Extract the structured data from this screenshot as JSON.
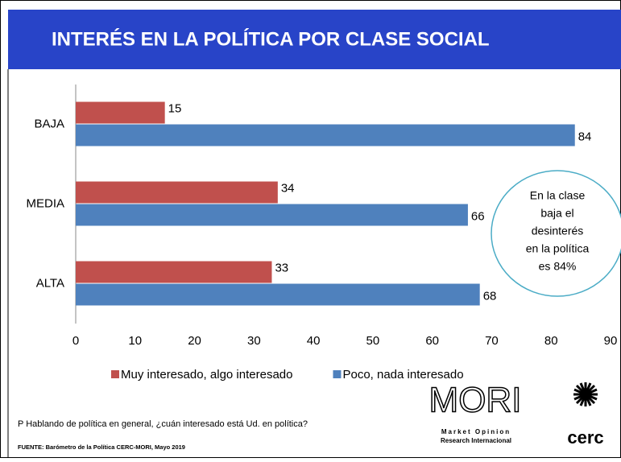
{
  "chart_data": {
    "type": "hbar",
    "title": "INTERÉS EN LA POLÍTICA  POR CLASE SOCIAL",
    "categories": [
      "BAJA",
      "MEDIA",
      "ALTA"
    ],
    "series": [
      {
        "name": "Muy interesado, algo interesado",
        "color": "#c0504d",
        "values": [
          15,
          34,
          33
        ]
      },
      {
        "name": "Poco, nada interesado",
        "color": "#4f81bd",
        "values": [
          84,
          66,
          68
        ]
      }
    ],
    "xlim": [
      0,
      90
    ],
    "xticks": [
      0,
      10,
      20,
      30,
      40,
      50,
      60,
      70,
      80,
      90
    ],
    "legend": "bottom",
    "annotation": [
      "En la clase",
      "baja el",
      "desinterés",
      "en la política",
      "es  84%"
    ],
    "question": "P Hablando de política en general, ¿cuán interesado está Ud. en política?",
    "source": "FUENTE: Barómetro de la Política CERC-MORI, Mayo 2019"
  },
  "logos": {
    "mori": "MORI",
    "mori_line1": "Market Opinion",
    "mori_line2": "Research Internacional",
    "cerc": "cerc"
  }
}
